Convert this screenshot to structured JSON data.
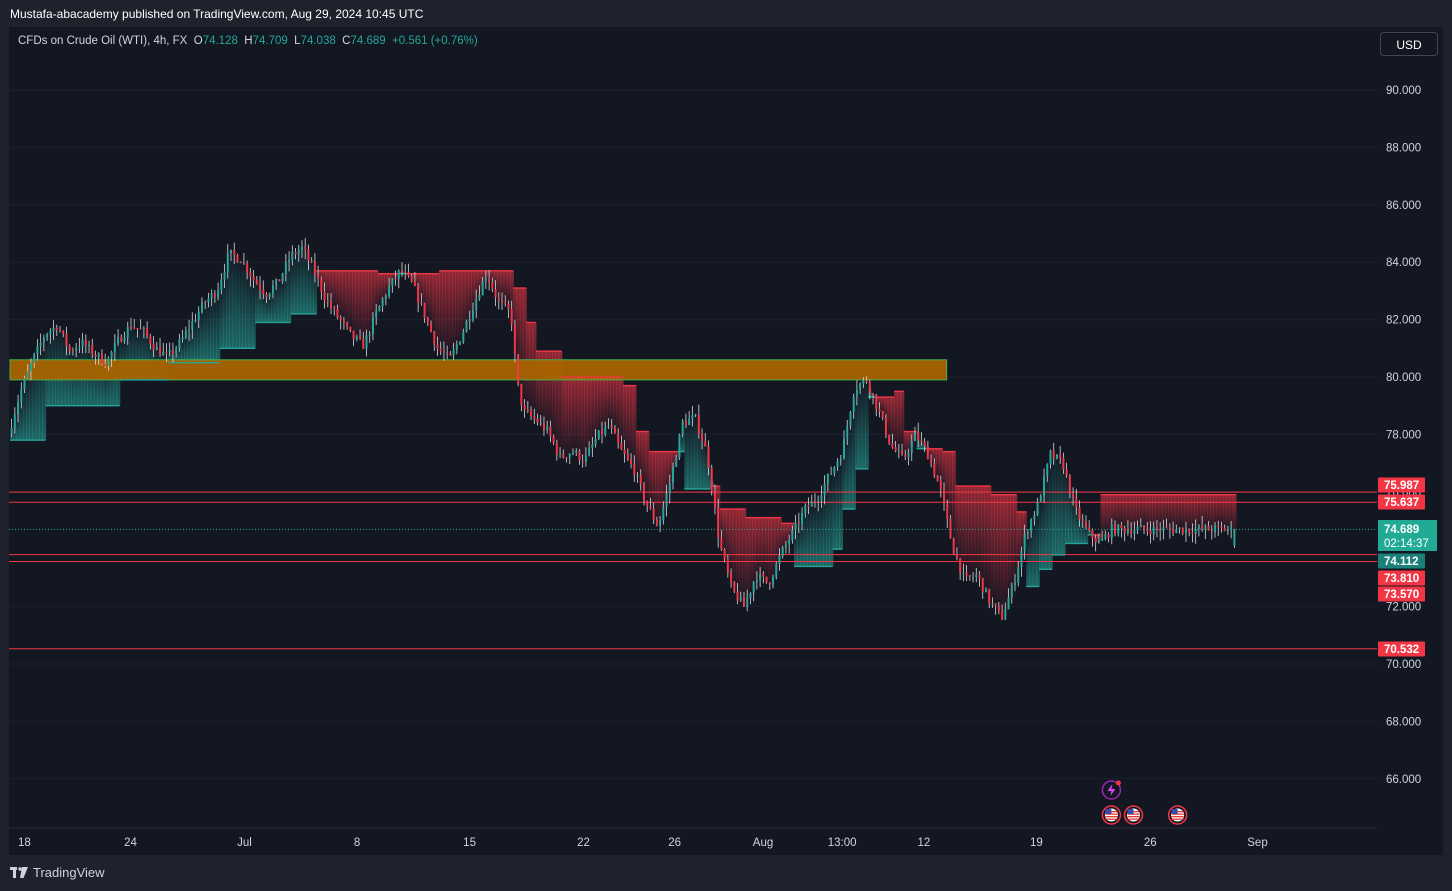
{
  "header": {
    "publisher": "Mustafa-abacademy published on TradingView.com, Aug 29, 2024 10:45 UTC"
  },
  "legend": {
    "symbol": "CFDs on Crude Oil (WTI), 4h, FX",
    "o_key": "O",
    "o": "74.128",
    "h_key": "H",
    "h": "74.709",
    "l_key": "L",
    "l": "74.038",
    "c_key": "C",
    "c": "74.689",
    "change": "+0.561 (+0.76%)"
  },
  "currency": "USD",
  "footer": {
    "brand": "TradingView"
  },
  "colors": {
    "up": "#26a69a",
    "down": "#f23645",
    "zone": "#a86400",
    "zone_border": "#4caf50",
    "background": "#131722"
  },
  "chart_data": {
    "type": "candlestick",
    "ylim": [
      64,
      91.5
    ],
    "y_ticks": [
      90,
      88,
      86,
      84,
      82,
      80,
      78,
      76,
      72,
      70,
      68,
      66
    ],
    "y_tick_labels": [
      "90.000",
      "88.000",
      "86.000",
      "84.000",
      "82.000",
      "80.000",
      "78.000",
      "76.000",
      "72.000",
      "70.000",
      "68.000",
      "66.000"
    ],
    "x_ticks": [
      {
        "label": "18",
        "pos": 0.0
      },
      {
        "label": "24",
        "pos": 0.084
      },
      {
        "label": "Jul",
        "pos": 0.169
      },
      {
        "label": "8",
        "pos": 0.253
      },
      {
        "label": "15",
        "pos": 0.337
      },
      {
        "label": "22",
        "pos": 0.422
      },
      {
        "label": "26",
        "pos": 0.49
      },
      {
        "label": "Aug",
        "pos": 0.556
      },
      {
        "label": "13:00",
        "pos": 0.615
      },
      {
        "label": "12",
        "pos": 0.676
      },
      {
        "label": "19",
        "pos": 0.76
      },
      {
        "label": "26",
        "pos": 0.845
      },
      {
        "label": "Sep",
        "pos": 0.925
      }
    ],
    "path": [
      [
        0.0,
        78.0
      ],
      [
        0.01,
        79.5
      ],
      [
        0.02,
        80.6
      ],
      [
        0.03,
        81.5
      ],
      [
        0.04,
        81.8
      ],
      [
        0.05,
        80.9
      ],
      [
        0.06,
        81.2
      ],
      [
        0.07,
        80.8
      ],
      [
        0.08,
        80.5
      ],
      [
        0.09,
        81.3
      ],
      [
        0.1,
        81.8
      ],
      [
        0.11,
        81.6
      ],
      [
        0.12,
        81.0
      ],
      [
        0.13,
        80.7
      ],
      [
        0.14,
        81.2
      ],
      [
        0.15,
        81.9
      ],
      [
        0.16,
        82.6
      ],
      [
        0.17,
        83.0
      ],
      [
        0.18,
        84.3
      ],
      [
        0.19,
        84.1
      ],
      [
        0.2,
        83.4
      ],
      [
        0.21,
        82.9
      ],
      [
        0.22,
        83.3
      ],
      [
        0.23,
        84.2
      ],
      [
        0.24,
        84.5
      ],
      [
        0.25,
        83.6
      ],
      [
        0.26,
        82.6
      ],
      [
        0.27,
        82.0
      ],
      [
        0.28,
        81.4
      ],
      [
        0.29,
        81.1
      ],
      [
        0.3,
        82.2
      ],
      [
        0.31,
        83.1
      ],
      [
        0.32,
        83.7
      ],
      [
        0.33,
        83.2
      ],
      [
        0.34,
        82.1
      ],
      [
        0.35,
        81.0
      ],
      [
        0.36,
        80.6
      ],
      [
        0.37,
        81.5
      ],
      [
        0.38,
        82.6
      ],
      [
        0.39,
        83.6
      ],
      [
        0.4,
        82.6
      ],
      [
        0.41,
        82.2
      ],
      [
        0.415,
        79.8
      ],
      [
        0.42,
        78.8
      ],
      [
        0.43,
        78.5
      ],
      [
        0.44,
        78.1
      ],
      [
        0.45,
        77.2
      ],
      [
        0.46,
        77.4
      ],
      [
        0.47,
        77.1
      ],
      [
        0.48,
        77.9
      ],
      [
        0.49,
        78.3
      ],
      [
        0.5,
        77.4
      ],
      [
        0.51,
        76.8
      ],
      [
        0.52,
        75.6
      ],
      [
        0.53,
        74.8
      ],
      [
        0.54,
        76.4
      ],
      [
        0.55,
        78.4
      ],
      [
        0.56,
        78.6
      ],
      [
        0.57,
        77.3
      ],
      [
        0.58,
        74.2
      ],
      [
        0.59,
        72.6
      ],
      [
        0.6,
        72.0
      ],
      [
        0.61,
        73.1
      ],
      [
        0.62,
        72.8
      ],
      [
        0.63,
        73.8
      ],
      [
        0.64,
        74.6
      ],
      [
        0.65,
        75.4
      ],
      [
        0.66,
        75.8
      ],
      [
        0.67,
        76.6
      ],
      [
        0.68,
        77.4
      ],
      [
        0.69,
        79.6
      ],
      [
        0.7,
        79.9
      ],
      [
        0.71,
        78.8
      ],
      [
        0.72,
        77.6
      ],
      [
        0.73,
        77.1
      ],
      [
        0.74,
        78.0
      ],
      [
        0.75,
        77.3
      ],
      [
        0.76,
        76.1
      ],
      [
        0.77,
        74.1
      ],
      [
        0.78,
        72.9
      ],
      [
        0.79,
        73.1
      ],
      [
        0.8,
        72.2
      ],
      [
        0.81,
        71.6
      ],
      [
        0.82,
        72.8
      ],
      [
        0.83,
        74.6
      ],
      [
        0.84,
        75.6
      ],
      [
        0.85,
        77.3
      ],
      [
        0.86,
        77.0
      ],
      [
        0.87,
        75.4
      ],
      [
        0.88,
        74.6
      ],
      [
        0.89,
        74.2
      ],
      [
        0.9,
        74.689
      ]
    ],
    "trail_stop": [
      [
        0.0,
        77.8
      ],
      [
        0.03,
        79.0
      ],
      [
        0.09,
        79.9
      ],
      [
        0.13,
        80.5
      ],
      [
        0.17,
        81.0
      ],
      [
        0.2,
        81.9
      ],
      [
        0.23,
        82.2
      ],
      [
        0.25,
        83.7
      ],
      [
        0.3,
        83.6
      ],
      [
        0.35,
        83.7
      ],
      [
        0.38,
        83.7
      ],
      [
        0.41,
        83.1
      ],
      [
        0.42,
        81.9
      ],
      [
        0.43,
        80.9
      ],
      [
        0.45,
        80.0
      ],
      [
        0.5,
        79.7
      ],
      [
        0.51,
        78.1
      ],
      [
        0.52,
        77.4
      ],
      [
        0.55,
        76.1
      ],
      [
        0.57,
        76.2
      ],
      [
        0.58,
        75.4
      ],
      [
        0.6,
        75.1
      ],
      [
        0.63,
        74.9
      ],
      [
        0.64,
        73.4
      ],
      [
        0.67,
        74.0
      ],
      [
        0.68,
        75.4
      ],
      [
        0.69,
        76.8
      ],
      [
        0.7,
        79.3
      ],
      [
        0.72,
        79.5
      ],
      [
        0.73,
        78.1
      ],
      [
        0.74,
        77.5
      ],
      [
        0.76,
        77.4
      ],
      [
        0.77,
        76.2
      ],
      [
        0.8,
        75.9
      ],
      [
        0.82,
        75.3
      ],
      [
        0.83,
        72.7
      ],
      [
        0.84,
        73.3
      ],
      [
        0.85,
        73.8
      ],
      [
        0.86,
        74.2
      ],
      [
        0.88,
        74.5
      ],
      [
        0.89,
        75.9
      ],
      [
        0.9,
        75.9
      ]
    ],
    "zone": {
      "top": 80.6,
      "bottom": 79.9,
      "x_end": 0.764
    },
    "levels": [
      {
        "value": 75.987,
        "label": "75.987"
      },
      {
        "value": 75.637,
        "label": "75.637"
      },
      {
        "value": 73.81,
        "label": "73.810"
      },
      {
        "value": 73.57,
        "label": "73.570"
      },
      {
        "value": 70.532,
        "label": "70.532"
      }
    ],
    "current": {
      "value": 74.689,
      "label": "74.689",
      "countdown": "02:14:37"
    },
    "stop_label": {
      "value": 74.112,
      "label": "74.112"
    },
    "events": [
      {
        "type": "earnings-lightning-icon",
        "x": 0.9,
        "row": 1
      },
      {
        "type": "us-flag-icon",
        "x": 0.9,
        "row": 2
      },
      {
        "type": "us-flag-icon",
        "x": 0.918,
        "row": 2
      },
      {
        "type": "us-flag-icon",
        "x": 0.954,
        "row": 2
      }
    ]
  }
}
